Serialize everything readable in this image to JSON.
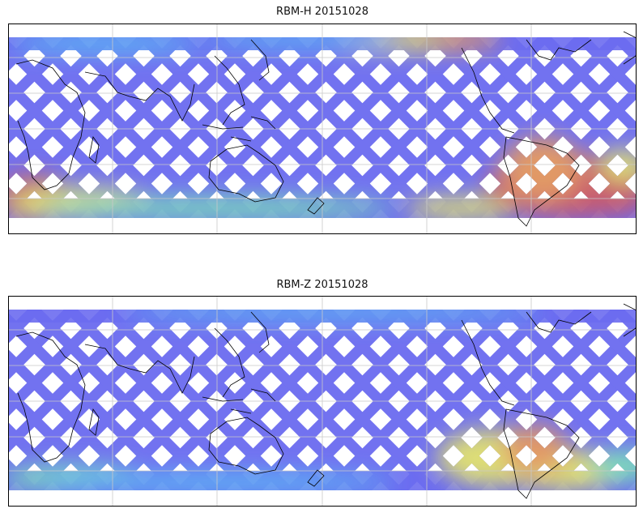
{
  "panels": [
    {
      "title": "RBM-H 20151028",
      "hotspots": "h"
    },
    {
      "title": "RBM-Z 20151028",
      "hotspots": "z"
    }
  ],
  "colors": {
    "background_swath": "#6b6bf0",
    "swath_mid": "#5ac8f5",
    "swath_green": "#7ef0b0",
    "swath_yellow": "#f0f060",
    "swath_orange": "#f5a050",
    "swath_red": "#d85858",
    "coastline": "#000000",
    "grid": "#c8c8c8"
  }
}
